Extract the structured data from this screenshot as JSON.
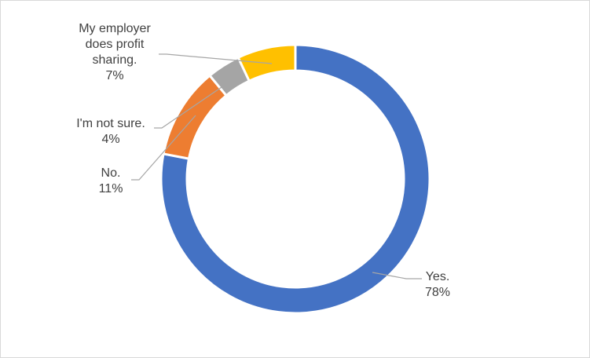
{
  "chart_data": {
    "type": "pie",
    "variant": "donut",
    "title": "",
    "legend": "none",
    "slices": [
      {
        "name": "Yes.",
        "value": 78,
        "label": "78%",
        "color": "#4472C4"
      },
      {
        "name": "No.",
        "value": 11,
        "label": "11%",
        "color": "#ED7D31"
      },
      {
        "name": "I'm not sure.",
        "value": 4,
        "label": "4%",
        "color": "#A5A5A5"
      },
      {
        "name": "My employer does profit sharing.",
        "value": 7,
        "label": "7%",
        "color": "#FFC000"
      }
    ]
  }
}
